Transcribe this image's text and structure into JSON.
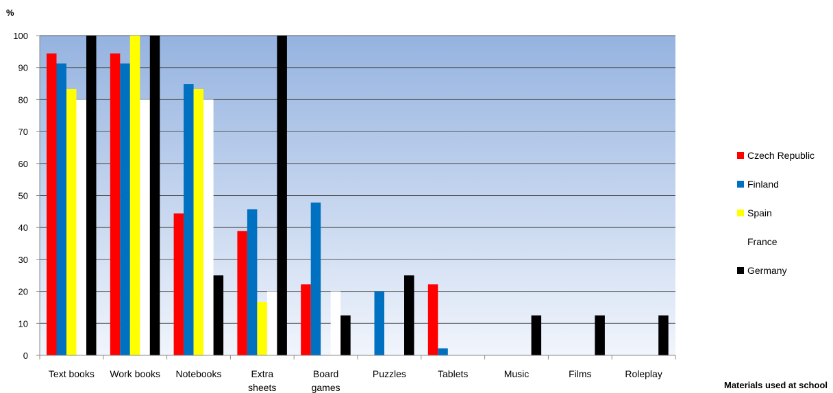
{
  "chart_data": {
    "type": "bar",
    "title": "",
    "ylabel": "%",
    "xlabel": "Materials used at school",
    "ylim": [
      0,
      100
    ],
    "yticks": [
      0,
      10,
      20,
      30,
      40,
      50,
      60,
      70,
      80,
      90,
      100
    ],
    "grid": true,
    "legend_position": "right",
    "categories": [
      "Text books",
      "Work books",
      "Notebooks",
      "Extra sheets",
      "Board games",
      "Puzzles",
      "Tablets",
      "Music",
      "Films",
      "Roleplay"
    ],
    "series": [
      {
        "name": "Czech Republic",
        "color": "#ff0000",
        "values": [
          94.4,
          94.4,
          44.4,
          38.9,
          22.2,
          0,
          22.2,
          0,
          0,
          0
        ]
      },
      {
        "name": "Finland",
        "color": "#0070c0",
        "values": [
          91.3,
          91.3,
          84.8,
          45.7,
          47.8,
          20.0,
          2.2,
          0,
          0,
          0
        ]
      },
      {
        "name": "Spain",
        "color": "#ffff00",
        "values": [
          83.3,
          100,
          83.3,
          16.7,
          0,
          0,
          0,
          0,
          0,
          0
        ]
      },
      {
        "name": "France",
        "color": "#ffffff",
        "values": [
          80,
          80,
          80,
          20,
          20,
          0,
          0,
          0,
          0,
          0
        ]
      },
      {
        "name": "Germany",
        "color": "#000000",
        "values": [
          100,
          100,
          25,
          100,
          12.5,
          25,
          0,
          12.5,
          12.5,
          12.5
        ]
      }
    ],
    "plot_background": {
      "top": "#95b3e0",
      "bottom": "#f1f5fc"
    },
    "gridline_color": "#555555"
  }
}
